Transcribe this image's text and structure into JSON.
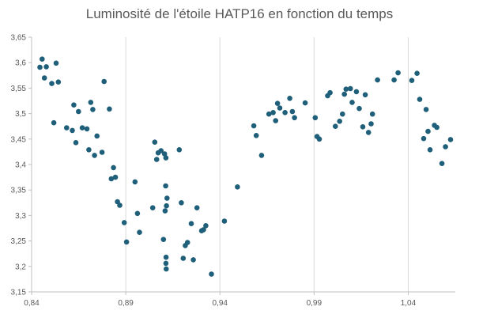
{
  "chart_data": {
    "type": "scatter",
    "title": "Luminosité de l'étoile HATP16 en fonction du temps",
    "xlabel": "",
    "ylabel": "",
    "xlim": [
      0.84,
      1.065
    ],
    "ylim": [
      3.15,
      3.65
    ],
    "xticks": [
      "0,84",
      "0,89",
      "0,94",
      "0,99",
      "1,04"
    ],
    "xtick_values": [
      0.84,
      0.89,
      0.94,
      0.99,
      1.04
    ],
    "yticks": [
      "3,15",
      "3,2",
      "3,25",
      "3,3",
      "3,35",
      "3,4",
      "3,45",
      "3,5",
      "3,55",
      "3,6",
      "3,65"
    ],
    "ytick_values": [
      3.15,
      3.2,
      3.25,
      3.3,
      3.35,
      3.4,
      3.45,
      3.5,
      3.55,
      3.6,
      3.65
    ],
    "grid": {
      "x": true,
      "y": false
    },
    "legend": "none",
    "marker_color": "#1f5f7a",
    "series": [
      {
        "points": [
          [
            0.8444,
            3.591
          ],
          [
            0.8456,
            3.607
          ],
          [
            0.8468,
            3.57
          ],
          [
            0.8478,
            3.592
          ],
          [
            0.8507,
            3.559
          ],
          [
            0.8518,
            3.482
          ],
          [
            0.853,
            3.599
          ],
          [
            0.8542,
            3.562
          ],
          [
            0.8586,
            3.472
          ],
          [
            0.8616,
            3.467
          ],
          [
            0.8624,
            3.517
          ],
          [
            0.8635,
            3.443
          ],
          [
            0.8649,
            3.504
          ],
          [
            0.8669,
            3.472
          ],
          [
            0.8694,
            3.47
          ],
          [
            0.8704,
            3.429
          ],
          [
            0.8714,
            3.522
          ],
          [
            0.8725,
            3.508
          ],
          [
            0.8734,
            3.418
          ],
          [
            0.8747,
            3.456
          ],
          [
            0.8774,
            3.424
          ],
          [
            0.8785,
            3.563
          ],
          [
            0.8813,
            3.509
          ],
          [
            0.8823,
            3.372
          ],
          [
            0.8835,
            3.394
          ],
          [
            0.8845,
            3.375
          ],
          [
            0.8856,
            3.327
          ],
          [
            0.8868,
            3.32
          ],
          [
            0.8892,
            3.286
          ],
          [
            0.8904,
            3.248
          ],
          [
            0.8949,
            3.366
          ],
          [
            0.8962,
            3.304
          ],
          [
            0.8973,
            3.267
          ],
          [
            0.9043,
            3.315
          ],
          [
            0.9054,
            3.444
          ],
          [
            0.9064,
            3.41
          ],
          [
            0.9072,
            3.423
          ],
          [
            0.9087,
            3.427
          ],
          [
            0.91,
            3.253
          ],
          [
            0.9106,
            3.421
          ],
          [
            0.9109,
            3.309
          ],
          [
            0.9112,
            3.358
          ],
          [
            0.9113,
            3.413
          ],
          [
            0.9113,
            3.206
          ],
          [
            0.9114,
            3.218
          ],
          [
            0.9115,
            3.195
          ],
          [
            0.9116,
            3.319
          ],
          [
            0.9119,
            3.334
          ],
          [
            0.9184,
            3.429
          ],
          [
            0.9195,
            3.325
          ],
          [
            0.9205,
            3.216
          ],
          [
            0.9216,
            3.241
          ],
          [
            0.9228,
            3.247
          ],
          [
            0.9248,
            3.284
          ],
          [
            0.9259,
            3.213
          ],
          [
            0.9278,
            3.315
          ],
          [
            0.9303,
            3.27
          ],
          [
            0.9313,
            3.272
          ],
          [
            0.9325,
            3.28
          ],
          [
            0.9355,
            3.185
          ],
          [
            0.9424,
            3.289
          ],
          [
            0.9493,
            3.356
          ],
          [
            0.958,
            3.476
          ],
          [
            0.9593,
            3.457
          ],
          [
            0.9621,
            3.418
          ],
          [
            0.966,
            3.499
          ],
          [
            0.9683,
            3.502
          ],
          [
            0.9696,
            3.486
          ],
          [
            0.9706,
            3.52
          ],
          [
            0.9718,
            3.511
          ],
          [
            0.9746,
            3.502
          ],
          [
            0.9771,
            3.53
          ],
          [
            0.9785,
            3.504
          ],
          [
            0.9796,
            3.492
          ],
          [
            0.9853,
            3.521
          ],
          [
            0.9906,
            3.492
          ],
          [
            0.9916,
            3.455
          ],
          [
            0.9928,
            3.45
          ],
          [
            0.9972,
            3.535
          ],
          [
            0.9985,
            3.541
          ],
          [
            1.0013,
            3.475
          ],
          [
            1.0036,
            3.485
          ],
          [
            1.0051,
            3.499
          ],
          [
            1.0061,
            3.538
          ],
          [
            1.007,
            3.548
          ],
          [
            1.0093,
            3.549
          ],
          [
            1.0102,
            3.522
          ],
          [
            1.0125,
            3.543
          ],
          [
            1.014,
            3.51
          ],
          [
            1.0159,
            3.474
          ],
          [
            1.0172,
            3.537
          ],
          [
            1.0189,
            3.463
          ],
          [
            1.0203,
            3.48
          ],
          [
            1.021,
            3.499
          ],
          [
            1.0237,
            3.566
          ],
          [
            1.0325,
            3.566
          ],
          [
            1.0346,
            3.58
          ],
          [
            1.0419,
            3.565
          ],
          [
            1.0447,
            3.579
          ],
          [
            1.0461,
            3.528
          ],
          [
            1.0482,
            3.451
          ],
          [
            1.0495,
            3.508
          ],
          [
            1.0505,
            3.465
          ],
          [
            1.0516,
            3.429
          ],
          [
            1.0539,
            3.477
          ],
          [
            1.0552,
            3.473
          ],
          [
            1.0579,
            3.402
          ],
          [
            1.0598,
            3.435
          ],
          [
            1.0625,
            3.449
          ]
        ]
      }
    ]
  }
}
